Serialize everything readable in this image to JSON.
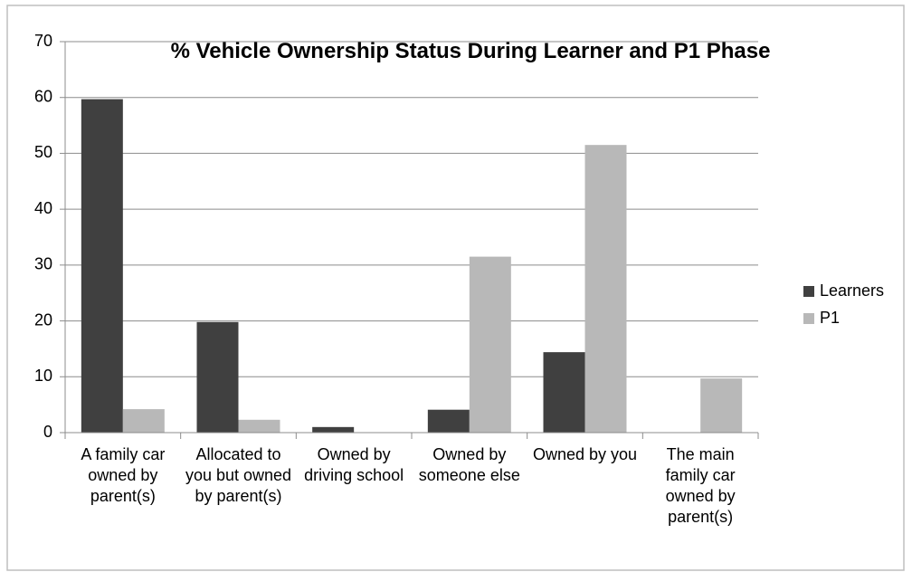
{
  "chart_data": {
    "type": "bar",
    "title": "% Vehicle Ownership Status During Learner and P1 Phase",
    "categories": [
      "A family car owned by parent(s)",
      "Allocated to you but owned by parent(s)",
      "Owned by driving school",
      "Owned by someone else",
      "Owned by you",
      "The main family car owned by parent(s)"
    ],
    "series": [
      {
        "name": "Learners",
        "color": "#404040",
        "values": [
          59.7,
          19.8,
          1.0,
          4.1,
          14.4,
          0
        ]
      },
      {
        "name": "P1",
        "color": "#b8b8b8",
        "values": [
          4.2,
          2.3,
          0,
          31.5,
          51.5,
          9.7
        ]
      }
    ],
    "ylim": [
      0,
      70
    ],
    "yticks": [
      0,
      10,
      20,
      30,
      40,
      50,
      60,
      70
    ],
    "grid": true,
    "legend": "right"
  }
}
